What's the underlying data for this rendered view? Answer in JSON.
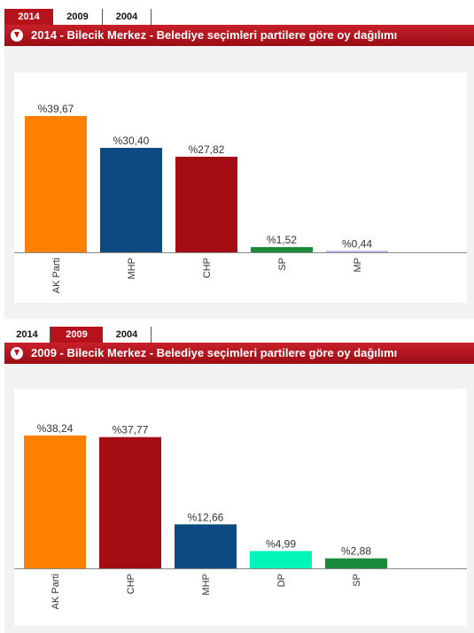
{
  "panels": [
    {
      "tabs": [
        {
          "label": "2014",
          "active": true
        },
        {
          "label": "2009",
          "active": false
        },
        {
          "label": "2004",
          "active": false
        }
      ],
      "title": "2014 - Bilecik Merkez - Belediye seçimleri partilere göre oy dağılımı"
    },
    {
      "tabs": [
        {
          "label": "2014",
          "active": false
        },
        {
          "label": "2009",
          "active": true
        },
        {
          "label": "2004",
          "active": false
        }
      ],
      "title": "2009 - Bilecik Merkez - Belediye seçimleri partilere göre oy dağılımı"
    }
  ],
  "chart_data": [
    {
      "type": "bar",
      "title": "2014 - Bilecik Merkez - Belediye seçimleri partilere göre oy dağılımı",
      "categories": [
        "AK Parti",
        "MHP",
        "CHP",
        "SP",
        "MP"
      ],
      "values": [
        39.67,
        30.4,
        27.82,
        1.52,
        0.44
      ],
      "data_labels": [
        "%39,67",
        "%30,40",
        "%27,82",
        "%1,52",
        "%0,44"
      ],
      "colors": [
        "#ff7f00",
        "#0c4a80",
        "#a30d13",
        "#1b8a3a",
        "#b0b3f0"
      ],
      "ylim": [
        0,
        42
      ],
      "grid": false,
      "legend": "none"
    },
    {
      "type": "bar",
      "title": "2009 - Bilecik Merkez - Belediye seçimleri partilere göre oy dağılımı",
      "categories": [
        "AK Parti",
        "CHP",
        "MHP",
        "DP",
        "SP"
      ],
      "values": [
        38.24,
        37.77,
        12.66,
        4.99,
        2.88
      ],
      "data_labels": [
        "%38,24",
        "%37,77",
        "%12,66",
        "%4,99",
        "%2,88"
      ],
      "colors": [
        "#ff7f00",
        "#a30d13",
        "#0c4a80",
        "#00f5b8",
        "#1b8a3a"
      ],
      "ylim": [
        0,
        40.5
      ],
      "grid": false,
      "legend": "none"
    }
  ]
}
